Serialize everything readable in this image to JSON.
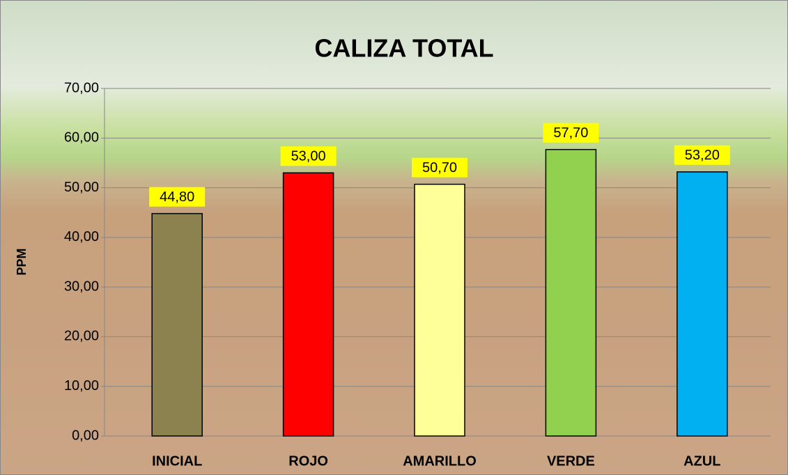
{
  "chart_data": {
    "type": "bar",
    "title": "CALIZA TOTAL",
    "y_label": "PPM",
    "categories": [
      "INICIAL",
      "ROJO",
      "AMARILLO",
      "VERDE",
      "AZUL"
    ],
    "values": [
      44.8,
      53.0,
      50.7,
      57.7,
      53.2
    ],
    "value_labels": [
      "44,80",
      "53,00",
      "50,70",
      "57,70",
      "53,20"
    ],
    "colors": [
      "#8b8250",
      "#ff0000",
      "#ffff99",
      "#92d050",
      "#00b0f0"
    ],
    "ylim": [
      0,
      70
    ],
    "yticks": [
      {
        "value": 0,
        "label": "0,00"
      },
      {
        "value": 10,
        "label": "10,00"
      },
      {
        "value": 20,
        "label": "20,00"
      },
      {
        "value": 30,
        "label": "30,00"
      },
      {
        "value": 40,
        "label": "40,00"
      },
      {
        "value": 50,
        "label": "50,00"
      },
      {
        "value": 60,
        "label": "60,00"
      },
      {
        "value": 70,
        "label": "70,00"
      }
    ],
    "grid": true
  }
}
